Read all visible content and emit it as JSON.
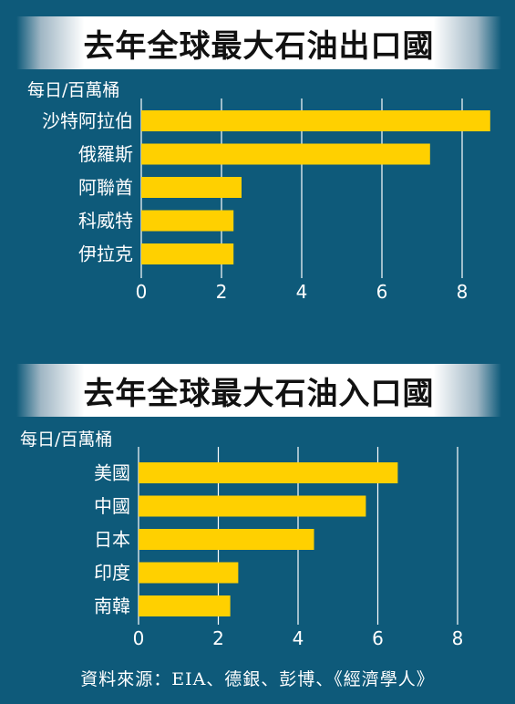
{
  "chart_data": [
    {
      "type": "bar",
      "orientation": "horizontal",
      "title": "去年全球最大石油出口國",
      "unit_label": "每日/百萬桶",
      "categories": [
        "沙特阿拉伯",
        "俄羅斯",
        "阿聯酋",
        "科威特",
        "伊拉克"
      ],
      "values": [
        8.7,
        7.2,
        2.5,
        2.3,
        2.3
      ],
      "xlim": [
        0,
        8.8
      ],
      "xticks": [
        "0",
        "2",
        "4",
        "6",
        "8"
      ],
      "grid": true
    },
    {
      "type": "bar",
      "orientation": "horizontal",
      "title": "去年全球最大石油入口國",
      "unit_label": "每日/百萬桶",
      "categories": [
        "美國",
        "中國",
        "日本",
        "印度",
        "南韓"
      ],
      "values": [
        6.5,
        5.7,
        4.4,
        2.5,
        2.3
      ],
      "xlim": [
        0,
        8.8
      ],
      "xticks": [
        "0",
        "2",
        "4",
        "6",
        "8"
      ],
      "grid": true
    }
  ],
  "source": "資料來源：EIA、德銀、彭博、《經濟學人》",
  "colors": {
    "background": "#0e5a7a",
    "bar": "#ffd000",
    "text": "#ffffff",
    "gridline": "#ffffff"
  }
}
